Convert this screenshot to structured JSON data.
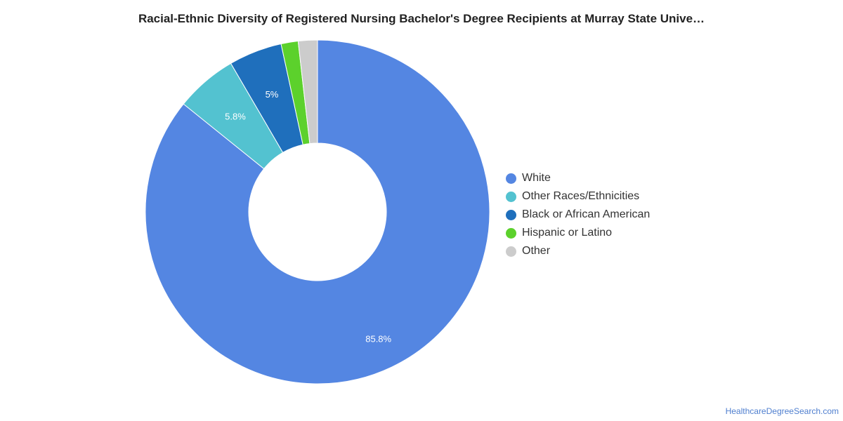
{
  "chart_data": {
    "type": "pie",
    "title": "Racial-Ethnic Diversity of Registered Nursing Bachelor's Degree Recipients at Murray State Unive…",
    "donut": true,
    "slices": [
      {
        "name": "White",
        "value": 85.8,
        "label": "85.8%",
        "color": "#5486e2"
      },
      {
        "name": "Other Races/Ethnicities",
        "value": 5.8,
        "label": "5.8%",
        "color": "#53c2d0"
      },
      {
        "name": "Black or African American",
        "value": 5.0,
        "label": "5%",
        "color": "#1f6fbc"
      },
      {
        "name": "Hispanic or Latino",
        "value": 1.6,
        "label": "",
        "color": "#5cd12c"
      },
      {
        "name": "Other",
        "value": 1.8,
        "label": "",
        "color": "#cccccc"
      }
    ],
    "legend_position": "right"
  },
  "footer": {
    "source": "HealthcareDegreeSearch.com"
  }
}
